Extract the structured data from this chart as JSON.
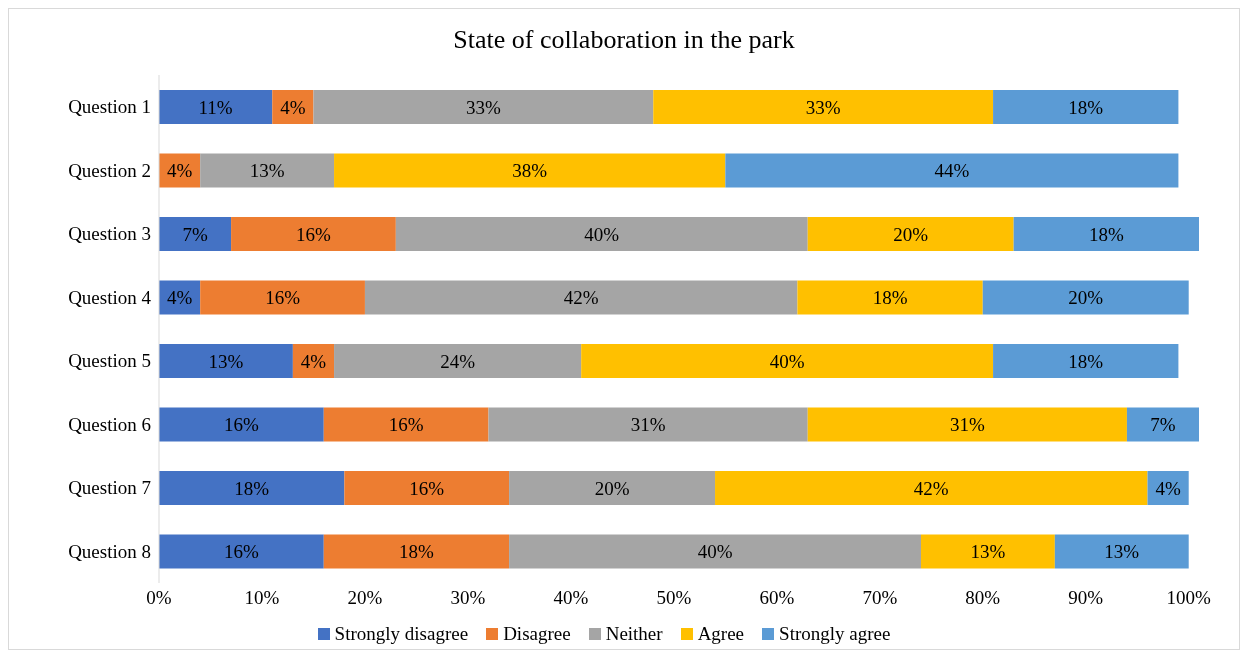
{
  "chart_data": {
    "type": "bar",
    "orientation": "horizontal",
    "stacked": true,
    "title": "State of collaboration in the park",
    "categories": [
      "Question 1",
      "Question 2",
      "Question 3",
      "Question 4",
      "Question 5",
      "Question 6",
      "Question 7",
      "Question 8"
    ],
    "series": [
      {
        "name": "Strongly disagree",
        "color": "#4472c4",
        "values": [
          11,
          0,
          7,
          4,
          13,
          16,
          18,
          16
        ],
        "value_labels": [
          "11%",
          null,
          "7%",
          "4%",
          "13%",
          "16%",
          "18%",
          "16%"
        ]
      },
      {
        "name": "Disagree",
        "color": "#ed7d31",
        "values": [
          4,
          4,
          16,
          16,
          4,
          16,
          16,
          18
        ],
        "value_labels": [
          "4%",
          "4%",
          "16%",
          "16%",
          "4%",
          "16%",
          "16%",
          "18%"
        ]
      },
      {
        "name": "Neither",
        "color": "#a5a5a5",
        "values": [
          33,
          13,
          40,
          42,
          24,
          31,
          20,
          40
        ],
        "value_labels": [
          "33%",
          "13%",
          "40%",
          "42%",
          "24%",
          "31%",
          "20%",
          "40%"
        ]
      },
      {
        "name": "Agree",
        "color": "#ffc000",
        "values": [
          33,
          38,
          20,
          18,
          40,
          31,
          42,
          13
        ],
        "value_labels": [
          "33%",
          "38%",
          "20%",
          "18%",
          "40%",
          "31%",
          "42%",
          "13%"
        ]
      },
      {
        "name": "Strongly agree",
        "color": "#5b9bd5",
        "values": [
          18,
          44,
          18,
          20,
          18,
          7,
          4,
          13
        ],
        "value_labels": [
          "18%",
          "44%",
          "18%",
          "20%",
          "18%",
          "7%",
          "4%",
          "13%"
        ]
      }
    ],
    "xlim": [
      0,
      101
    ],
    "xticks": [
      {
        "value": 0,
        "label": "0%"
      },
      {
        "value": 10,
        "label": "10%"
      },
      {
        "value": 20,
        "label": "20%"
      },
      {
        "value": 30,
        "label": "30%"
      },
      {
        "value": 40,
        "label": "40%"
      },
      {
        "value": 50,
        "label": "50%"
      },
      {
        "value": 60,
        "label": "60%"
      },
      {
        "value": 70,
        "label": "70%"
      },
      {
        "value": 80,
        "label": "80%"
      },
      {
        "value": 90,
        "label": "90%"
      },
      {
        "value": 100,
        "label": "100%"
      }
    ],
    "grid": false,
    "legend": "bottom"
  }
}
